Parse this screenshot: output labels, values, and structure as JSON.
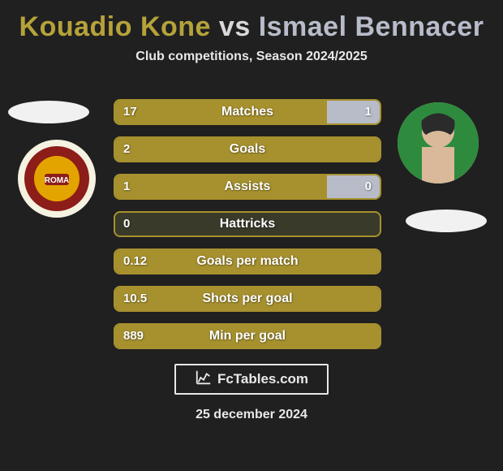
{
  "header": {
    "title_parts": {
      "p1": "Kouadio Kone",
      "vs": " vs ",
      "p2": "Ismael Bennacer"
    },
    "subtitle": "Club competitions, Season 2024/2025"
  },
  "colors": {
    "background": "#202020",
    "player1": "#a7912e",
    "player2": "#b8bcc9",
    "row_border": "#a7912e",
    "row_bg": "#3a3a2a",
    "title_p1": "#b6a23a",
    "title_vs": "#d8d8d8",
    "title_p2": "#b8bcc9",
    "ellipse": "#f1f1f1"
  },
  "rows": [
    {
      "label": "Matches",
      "left": "17",
      "right": "1",
      "left_pct": 80,
      "right_pct": 20
    },
    {
      "label": "Goals",
      "left": "2",
      "right": "",
      "left_pct": 100,
      "right_pct": 0
    },
    {
      "label": "Assists",
      "left": "1",
      "right": "0",
      "left_pct": 80,
      "right_pct": 20
    },
    {
      "label": "Hattricks",
      "left": "0",
      "right": "",
      "left_pct": 0,
      "right_pct": 0
    },
    {
      "label": "Goals per match",
      "left": "0.12",
      "right": "",
      "left_pct": 100,
      "right_pct": 0
    },
    {
      "label": "Shots per goal",
      "left": "10.5",
      "right": "",
      "left_pct": 100,
      "right_pct": 0
    },
    {
      "label": "Min per goal",
      "left": "889",
      "right": "",
      "left_pct": 100,
      "right_pct": 0
    }
  ],
  "footer": {
    "brand": "FcTables.com",
    "date": "25 december 2024"
  }
}
